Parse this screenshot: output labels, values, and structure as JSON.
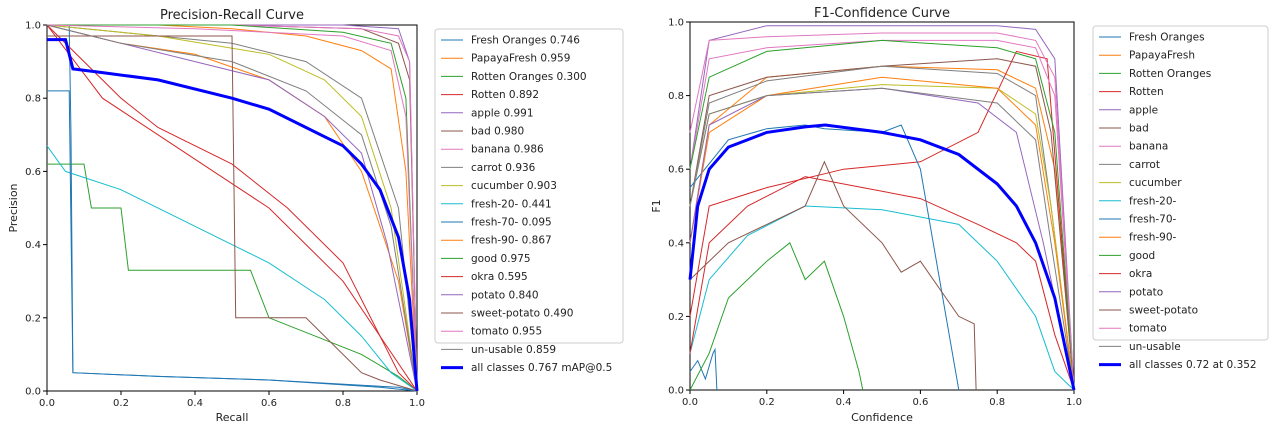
{
  "colors": [
    "#1f77b4",
    "#ff7f0e",
    "#2ca02c",
    "#d62728",
    "#9467bd",
    "#8c564b",
    "#e377c2",
    "#7f7f7f",
    "#bcbd22",
    "#17becf",
    "#1f77b4",
    "#ff7f0e",
    "#2ca02c",
    "#d62728",
    "#9467bd",
    "#8c564b",
    "#e377c2",
    "#7f7f7f"
  ],
  "all_color": "#0000ff",
  "chart_data": [
    {
      "type": "line",
      "title": "Precision-Recall Curve",
      "xlabel": "Recall",
      "ylabel": "Precision",
      "xlim": [
        0,
        1
      ],
      "ylim": [
        0,
        1
      ],
      "xticks": [
        "0.0",
        "0.2",
        "0.4",
        "0.6",
        "0.8",
        "1.0"
      ],
      "yticks": [
        "0.0",
        "0.2",
        "0.4",
        "0.6",
        "0.8",
        "1.0"
      ],
      "legend_position": "outside-right",
      "series": [
        {
          "name": "Fresh Oranges 0.746",
          "x": [
            0,
            0.06,
            0.065,
            0.07,
            0.3,
            0.6,
            0.95,
            1.0
          ],
          "y": [
            1.0,
            1.0,
            0.7,
            0.05,
            0.04,
            0.03,
            0.01,
            0.0
          ]
        },
        {
          "name": "PapayaFresh 0.959",
          "x": [
            0,
            0.3,
            0.5,
            0.7,
            0.85,
            0.93,
            0.97,
            1.0
          ],
          "y": [
            1.0,
            1.0,
            0.99,
            0.97,
            0.93,
            0.88,
            0.6,
            0.0
          ]
        },
        {
          "name": "Rotten Oranges 0.300",
          "x": [
            0,
            0.1,
            0.12,
            0.2,
            0.22,
            0.55,
            0.6,
            0.85,
            0.95,
            1.0
          ],
          "y": [
            0.62,
            0.62,
            0.5,
            0.5,
            0.33,
            0.33,
            0.2,
            0.1,
            0.04,
            0.0
          ]
        },
        {
          "name": "Rotten 0.892",
          "x": [
            0,
            0.15,
            0.3,
            0.45,
            0.6,
            0.7,
            0.8,
            0.9,
            0.95,
            1.0
          ],
          "y": [
            1.0,
            0.8,
            0.7,
            0.6,
            0.5,
            0.4,
            0.3,
            0.15,
            0.05,
            0.0
          ]
        },
        {
          "name": "apple 0.991",
          "x": [
            0,
            0.5,
            0.8,
            0.95,
            0.98,
            1.0
          ],
          "y": [
            1.0,
            1.0,
            1.0,
            0.99,
            0.9,
            0.0
          ]
        },
        {
          "name": "bad 0.980",
          "x": [
            0,
            0.5,
            0.85,
            0.95,
            0.98,
            1.0
          ],
          "y": [
            1.0,
            1.0,
            0.99,
            0.95,
            0.85,
            0.0
          ]
        },
        {
          "name": "banana 0.986",
          "x": [
            0,
            0.5,
            0.85,
            0.95,
            0.98,
            1.0
          ],
          "y": [
            1.0,
            1.0,
            0.99,
            0.97,
            0.9,
            0.0
          ]
        },
        {
          "name": "carrot 0.936",
          "x": [
            0,
            0.2,
            0.5,
            0.7,
            0.85,
            0.95,
            1.0
          ],
          "y": [
            1.0,
            0.98,
            0.95,
            0.9,
            0.8,
            0.5,
            0.0
          ]
        },
        {
          "name": "cucumber 0.903",
          "x": [
            0,
            0.3,
            0.6,
            0.75,
            0.85,
            0.93,
            1.0
          ],
          "y": [
            1.0,
            0.97,
            0.92,
            0.85,
            0.75,
            0.5,
            0.0
          ]
        },
        {
          "name": "fresh-20- 0.441",
          "x": [
            0,
            0.05,
            0.2,
            0.4,
            0.6,
            0.75,
            0.85,
            0.93,
            1.0
          ],
          "y": [
            0.67,
            0.6,
            0.55,
            0.45,
            0.35,
            0.25,
            0.15,
            0.05,
            0.0
          ]
        },
        {
          "name": "fresh-70- 0.095",
          "x": [
            0,
            0.06,
            0.07,
            0.3,
            0.6,
            0.9,
            1.0
          ],
          "y": [
            0.82,
            0.82,
            0.05,
            0.04,
            0.03,
            0.01,
            0.0
          ]
        },
        {
          "name": "fresh-90- 0.867",
          "x": [
            0,
            0.2,
            0.4,
            0.6,
            0.75,
            0.85,
            0.95,
            1.0
          ],
          "y": [
            1.0,
            0.95,
            0.92,
            0.85,
            0.75,
            0.6,
            0.3,
            0.0
          ]
        },
        {
          "name": "good 0.975",
          "x": [
            0,
            0.5,
            0.8,
            0.93,
            0.97,
            1.0
          ],
          "y": [
            1.0,
            1.0,
            0.98,
            0.95,
            0.8,
            0.0
          ]
        },
        {
          "name": "okra 0.595",
          "x": [
            0,
            0.1,
            0.2,
            0.3,
            0.5,
            0.65,
            0.8,
            0.9,
            1.0
          ],
          "y": [
            1.0,
            0.9,
            0.8,
            0.72,
            0.62,
            0.5,
            0.35,
            0.15,
            0.0
          ]
        },
        {
          "name": "potato 0.840",
          "x": [
            0,
            0.2,
            0.4,
            0.6,
            0.75,
            0.85,
            0.92,
            1.0
          ],
          "y": [
            1.0,
            0.95,
            0.9,
            0.85,
            0.75,
            0.65,
            0.4,
            0.0
          ]
        },
        {
          "name": "sweet-potato 0.490",
          "x": [
            0,
            0.25,
            0.5,
            0.51,
            0.7,
            0.85,
            0.9,
            1.0
          ],
          "y": [
            0.97,
            0.97,
            0.97,
            0.2,
            0.2,
            0.05,
            0.03,
            0.0
          ]
        },
        {
          "name": "tomato 0.955",
          "x": [
            0,
            0.4,
            0.8,
            0.93,
            0.97,
            1.0
          ],
          "y": [
            1.0,
            0.99,
            0.97,
            0.93,
            0.75,
            0.0
          ]
        },
        {
          "name": "un-usable 0.859",
          "x": [
            0,
            0.2,
            0.5,
            0.7,
            0.85,
            0.93,
            1.0
          ],
          "y": [
            1.0,
            0.95,
            0.9,
            0.82,
            0.7,
            0.45,
            0.0
          ]
        }
      ],
      "all_classes": {
        "name": "all classes 0.767 mAP@0.5",
        "x": [
          0,
          0.05,
          0.07,
          0.15,
          0.3,
          0.5,
          0.6,
          0.7,
          0.8,
          0.85,
          0.9,
          0.95,
          0.98,
          1.0
        ],
        "y": [
          0.96,
          0.96,
          0.88,
          0.87,
          0.85,
          0.8,
          0.77,
          0.72,
          0.67,
          0.62,
          0.55,
          0.42,
          0.25,
          0.0
        ]
      }
    },
    {
      "type": "line",
      "title": "F1-Confidence Curve",
      "xlabel": "Confidence",
      "ylabel": "F1",
      "xlim": [
        0,
        1
      ],
      "ylim": [
        0,
        1
      ],
      "xticks": [
        "0.0",
        "0.2",
        "0.4",
        "0.6",
        "0.8",
        "1.0"
      ],
      "yticks": [
        "0.0",
        "0.2",
        "0.4",
        "0.6",
        "0.8",
        "1.0"
      ],
      "legend_position": "outside-right",
      "series": [
        {
          "name": "Fresh Oranges",
          "x": [
            0,
            0.02,
            0.04,
            0.06,
            0.065,
            0.07
          ],
          "y": [
            0.05,
            0.08,
            0.03,
            0.1,
            0.11,
            0.0
          ]
        },
        {
          "name": "PapayaFresh",
          "x": [
            0,
            0.05,
            0.2,
            0.5,
            0.8,
            0.9,
            0.95,
            1.0
          ],
          "y": [
            0.4,
            0.72,
            0.85,
            0.88,
            0.87,
            0.82,
            0.6,
            0.0
          ]
        },
        {
          "name": "Rotten Oranges",
          "x": [
            0,
            0.05,
            0.1,
            0.2,
            0.26,
            0.3,
            0.35,
            0.4,
            0.44,
            0.45
          ],
          "y": [
            0.0,
            0.1,
            0.25,
            0.35,
            0.4,
            0.3,
            0.35,
            0.2,
            0.05,
            0.0
          ]
        },
        {
          "name": "Rotten",
          "x": [
            0,
            0.05,
            0.2,
            0.4,
            0.6,
            0.75,
            0.85,
            0.93,
            1.0
          ],
          "y": [
            0.2,
            0.5,
            0.55,
            0.6,
            0.62,
            0.7,
            0.92,
            0.9,
            0.0
          ]
        },
        {
          "name": "apple",
          "x": [
            0,
            0.05,
            0.2,
            0.5,
            0.8,
            0.9,
            0.95,
            1.0
          ],
          "y": [
            0.6,
            0.95,
            0.99,
            0.99,
            0.99,
            0.98,
            0.9,
            0.0
          ]
        },
        {
          "name": "bad",
          "x": [
            0,
            0.05,
            0.2,
            0.5,
            0.8,
            0.9,
            0.94,
            1.0
          ],
          "y": [
            0.5,
            0.8,
            0.85,
            0.88,
            0.9,
            0.88,
            0.7,
            0.0
          ]
        },
        {
          "name": "banana",
          "x": [
            0,
            0.05,
            0.2,
            0.5,
            0.8,
            0.9,
            0.95,
            1.0
          ],
          "y": [
            0.6,
            0.9,
            0.93,
            0.95,
            0.95,
            0.93,
            0.8,
            0.0
          ]
        },
        {
          "name": "carrot",
          "x": [
            0,
            0.05,
            0.2,
            0.5,
            0.8,
            0.9,
            0.94,
            1.0
          ],
          "y": [
            0.5,
            0.78,
            0.84,
            0.88,
            0.86,
            0.8,
            0.5,
            0.0
          ]
        },
        {
          "name": "cucumber",
          "x": [
            0,
            0.05,
            0.2,
            0.5,
            0.8,
            0.9,
            0.94,
            1.0
          ],
          "y": [
            0.5,
            0.75,
            0.8,
            0.83,
            0.82,
            0.75,
            0.5,
            0.0
          ]
        },
        {
          "name": "fresh-20-",
          "x": [
            0,
            0.05,
            0.15,
            0.3,
            0.5,
            0.7,
            0.8,
            0.9,
            0.95,
            1.0
          ],
          "y": [
            0.1,
            0.3,
            0.42,
            0.5,
            0.49,
            0.45,
            0.35,
            0.2,
            0.05,
            0.0
          ]
        },
        {
          "name": "fresh-70-",
          "x": [
            0,
            0.1,
            0.2,
            0.3,
            0.35,
            0.5,
            0.55,
            0.6,
            0.7
          ],
          "y": [
            0.55,
            0.68,
            0.71,
            0.72,
            0.71,
            0.7,
            0.72,
            0.6,
            0.0
          ]
        },
        {
          "name": "fresh-90-",
          "x": [
            0,
            0.05,
            0.2,
            0.5,
            0.8,
            0.9,
            0.95,
            1.0
          ],
          "y": [
            0.4,
            0.7,
            0.8,
            0.85,
            0.82,
            0.72,
            0.4,
            0.0
          ]
        },
        {
          "name": "good",
          "x": [
            0,
            0.05,
            0.2,
            0.5,
            0.8,
            0.9,
            0.95,
            1.0
          ],
          "y": [
            0.6,
            0.85,
            0.92,
            0.95,
            0.93,
            0.9,
            0.7,
            0.0
          ]
        },
        {
          "name": "okra",
          "x": [
            0,
            0.05,
            0.15,
            0.3,
            0.45,
            0.6,
            0.75,
            0.85,
            0.9,
            0.95,
            1.0
          ],
          "y": [
            0.1,
            0.4,
            0.5,
            0.58,
            0.55,
            0.52,
            0.45,
            0.4,
            0.35,
            0.15,
            0.0
          ]
        },
        {
          "name": "potato",
          "x": [
            0,
            0.05,
            0.2,
            0.5,
            0.75,
            0.85,
            0.92,
            1.0
          ],
          "y": [
            0.4,
            0.72,
            0.8,
            0.82,
            0.78,
            0.7,
            0.4,
            0.0
          ]
        },
        {
          "name": "sweet-potato",
          "x": [
            0,
            0.1,
            0.2,
            0.3,
            0.35,
            0.4,
            0.5,
            0.55,
            0.6,
            0.7,
            0.74,
            0.745
          ],
          "y": [
            0.3,
            0.4,
            0.45,
            0.5,
            0.62,
            0.5,
            0.4,
            0.32,
            0.35,
            0.2,
            0.18,
            0.0
          ]
        },
        {
          "name": "tomato",
          "x": [
            0,
            0.05,
            0.2,
            0.5,
            0.8,
            0.9,
            0.95,
            1.0
          ],
          "y": [
            0.7,
            0.95,
            0.96,
            0.97,
            0.97,
            0.95,
            0.85,
            0.0
          ]
        },
        {
          "name": "un-usable",
          "x": [
            0,
            0.05,
            0.2,
            0.5,
            0.8,
            0.9,
            0.94,
            1.0
          ],
          "y": [
            0.5,
            0.75,
            0.8,
            0.82,
            0.78,
            0.68,
            0.4,
            0.0
          ]
        }
      ],
      "all_classes": {
        "name": "all classes 0.72 at 0.352",
        "x": [
          0,
          0.02,
          0.05,
          0.1,
          0.2,
          0.3,
          0.352,
          0.5,
          0.6,
          0.7,
          0.8,
          0.85,
          0.9,
          0.95,
          0.98,
          1.0
        ],
        "y": [
          0.3,
          0.5,
          0.6,
          0.66,
          0.7,
          0.715,
          0.72,
          0.7,
          0.68,
          0.64,
          0.56,
          0.5,
          0.4,
          0.25,
          0.1,
          0.0
        ]
      }
    }
  ]
}
